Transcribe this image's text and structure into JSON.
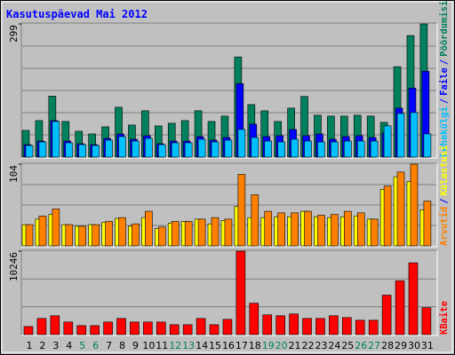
{
  "chart_data": [
    {
      "type": "bar",
      "title": "Kasutuspäevad Mai 2012",
      "categories": [
        "1",
        "2",
        "3",
        "4",
        "5",
        "6",
        "7",
        "8",
        "9",
        "10",
        "11",
        "12",
        "13",
        "14",
        "15",
        "16",
        "17",
        "18",
        "19",
        "20",
        "21",
        "22",
        "23",
        "24",
        "25",
        "26",
        "27",
        "28",
        "29",
        "30",
        "31"
      ],
      "category_colors": [
        "#000000",
        "#000000",
        "#000000",
        "#000000",
        "#00805c",
        "#00805c",
        "#000000",
        "#000000",
        "#000000",
        "#000000",
        "#000000",
        "#00805c",
        "#00805c",
        "#000000",
        "#000000",
        "#000000",
        "#000000",
        "#000000",
        "#00805c",
        "#00805c",
        "#000000",
        "#000000",
        "#000000",
        "#000000",
        "#000000",
        "#00805c",
        "#00805c",
        "#000000",
        "#000000",
        "#000000",
        "#000000"
      ],
      "legend_separator": "/",
      "ylim": [
        0,
        299
      ],
      "yticks": [
        299
      ],
      "series": [
        {
          "name": "Pöördumisi",
          "color": "#00805c",
          "values": [
            60,
            82,
            137,
            80,
            58,
            52,
            68,
            112,
            72,
            104,
            70,
            76,
            82,
            104,
            80,
            92,
            225,
            118,
            104,
            80,
            110,
            136,
            94,
            92,
            92,
            94,
            92,
            78,
            203,
            273,
            299
          ]
        },
        {
          "name": "Faile",
          "color": "#0000ff",
          "values": [
            28,
            36,
            82,
            36,
            30,
            28,
            42,
            52,
            40,
            48,
            30,
            36,
            36,
            46,
            38,
            44,
            165,
            74,
            46,
            48,
            62,
            48,
            52,
            40,
            46,
            48,
            44,
            54,
            110,
            155,
            193
          ]
        },
        {
          "name": "Lehekülgi",
          "color": "#00c0ff",
          "values": [
            26,
            34,
            80,
            32,
            28,
            26,
            38,
            46,
            36,
            42,
            28,
            32,
            32,
            40,
            34,
            38,
            62,
            44,
            36,
            34,
            40,
            36,
            34,
            34,
            36,
            36,
            36,
            70,
            98,
            100,
            52
          ]
        }
      ]
    },
    {
      "type": "bar",
      "ylim": [
        0,
        104
      ],
      "yticks": [
        104
      ],
      "series": [
        {
          "name": "Külastusi",
          "color": "#ffff00",
          "values": [
            27,
            34,
            40,
            27,
            25,
            27,
            30,
            35,
            25,
            36,
            22,
            29,
            31,
            34,
            28,
            32,
            50,
            36,
            36,
            37,
            37,
            44,
            37,
            36,
            37,
            38,
            34,
            72,
            88,
            82,
            46
          ]
        },
        {
          "name": "Arvutid",
          "color": "#ff8000",
          "values": [
            27,
            38,
            47,
            27,
            25,
            27,
            31,
            36,
            28,
            44,
            24,
            31,
            31,
            34,
            36,
            34,
            91,
            65,
            44,
            42,
            42,
            44,
            39,
            40,
            44,
            42,
            34,
            76,
            94,
            104,
            57
          ]
        }
      ]
    },
    {
      "type": "bar",
      "ylim": [
        0,
        10246
      ],
      "yticks": [
        10246
      ],
      "series": [
        {
          "name": "KBaite",
          "color": "#ff0000",
          "values": [
            992,
            1983,
            2314,
            1543,
            1102,
            1102,
            1543,
            1983,
            1543,
            1543,
            1543,
            1212,
            1212,
            1983,
            1212,
            1873,
            10246,
            3856,
            2424,
            2314,
            2534,
            1983,
            1983,
            2314,
            2093,
            1763,
            1763,
            4848,
            6611,
            8814,
            3305
          ]
        }
      ]
    }
  ]
}
